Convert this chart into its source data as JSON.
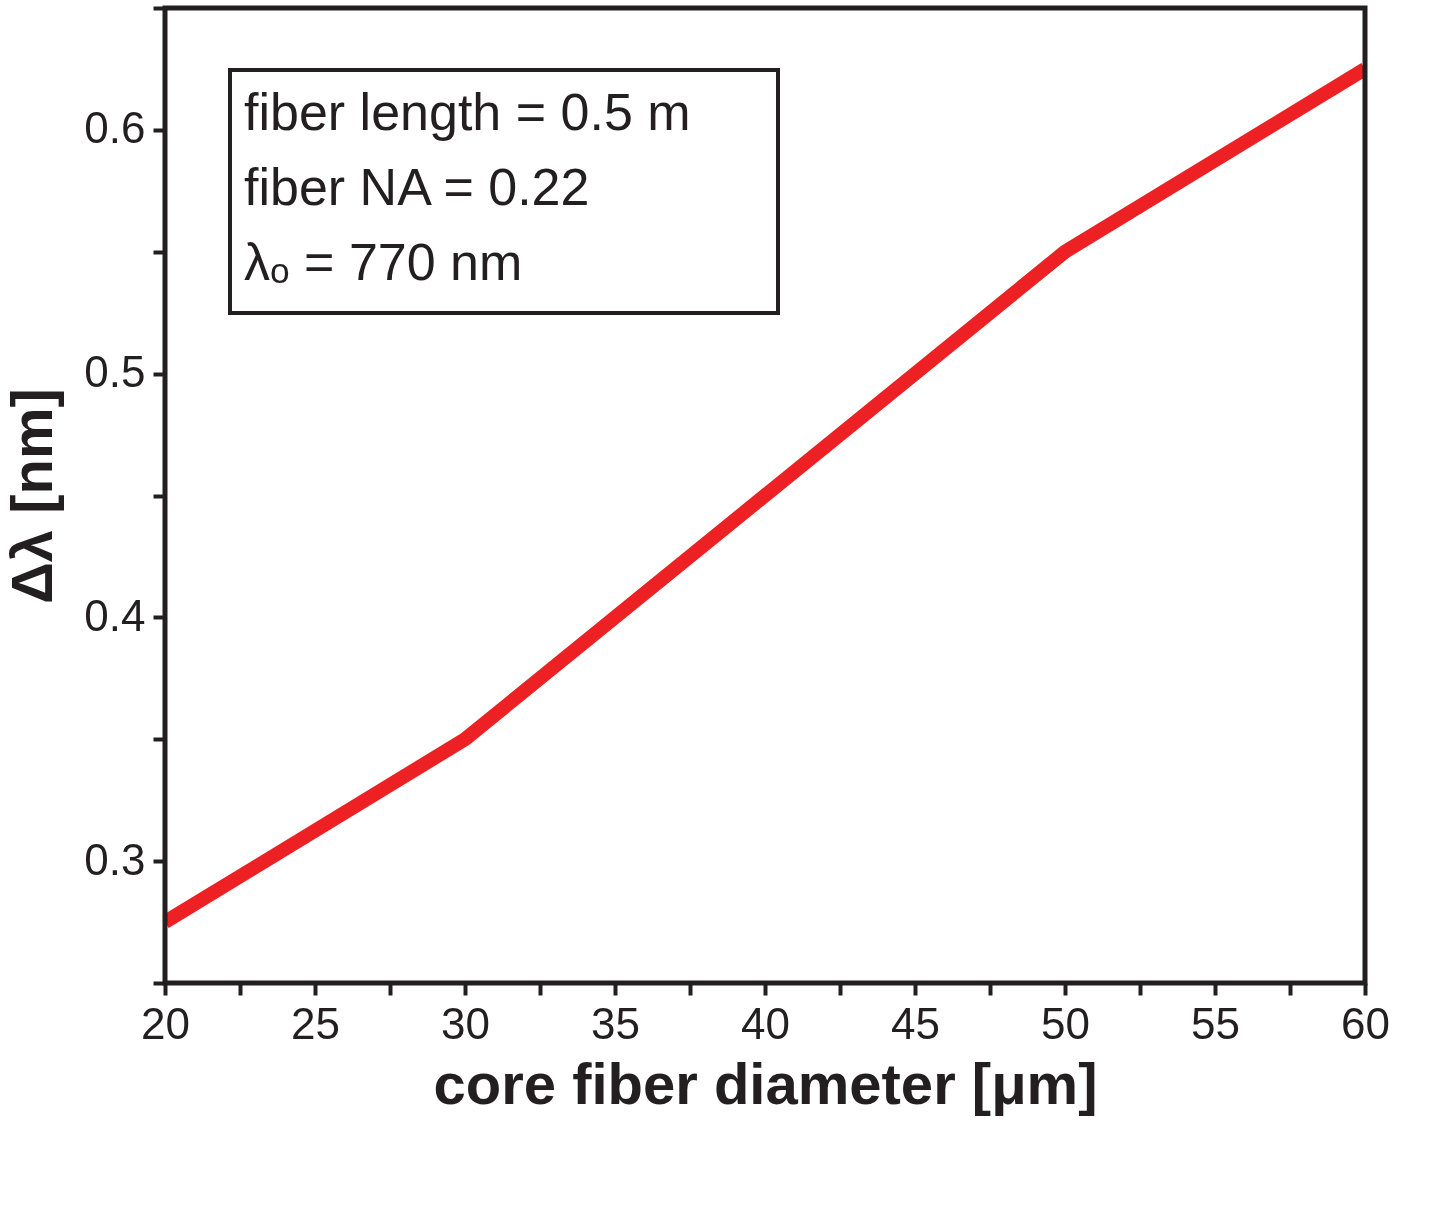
{
  "chart_data": {
    "type": "line",
    "xlabel": "core fiber diameter [μm]",
    "ylabel": "Δλ [nm]",
    "x": [
      20,
      30,
      40,
      50,
      60
    ],
    "series": [
      {
        "color": "#ed2024",
        "values": [
          0.275,
          0.35,
          0.45,
          0.55,
          0.625
        ]
      }
    ],
    "xlim": [
      20,
      60
    ],
    "ylim": [
      0.25,
      0.65
    ],
    "xticks": [
      20,
      {
        "value": 22.5,
        "label": null
      },
      25,
      {
        "value": 27.5,
        "label": null
      },
      30,
      {
        "value": 32.5,
        "label": null
      },
      35,
      {
        "value": 37.5,
        "label": null
      },
      40,
      {
        "value": 42.5,
        "label": null
      },
      45,
      {
        "value": 47.5,
        "label": null
      },
      50,
      {
        "value": 52.5,
        "label": null
      },
      55,
      {
        "value": 57.5,
        "label": null
      },
      60
    ],
    "yticks": [
      {
        "value": 0.25,
        "label": null
      },
      0.3,
      {
        "value": 0.35,
        "label": null
      },
      0.4,
      {
        "value": 0.45,
        "label": null
      },
      0.5,
      {
        "value": 0.55,
        "label": null
      },
      0.6,
      {
        "value": 0.65,
        "label": null
      }
    ],
    "annotations": [
      "fiber length = 0.5 m",
      "fiber NA = 0.22",
      "λₒ = 770 nm"
    ],
    "grid": false,
    "legend": false,
    "marker": "none",
    "line_style": "solid"
  }
}
